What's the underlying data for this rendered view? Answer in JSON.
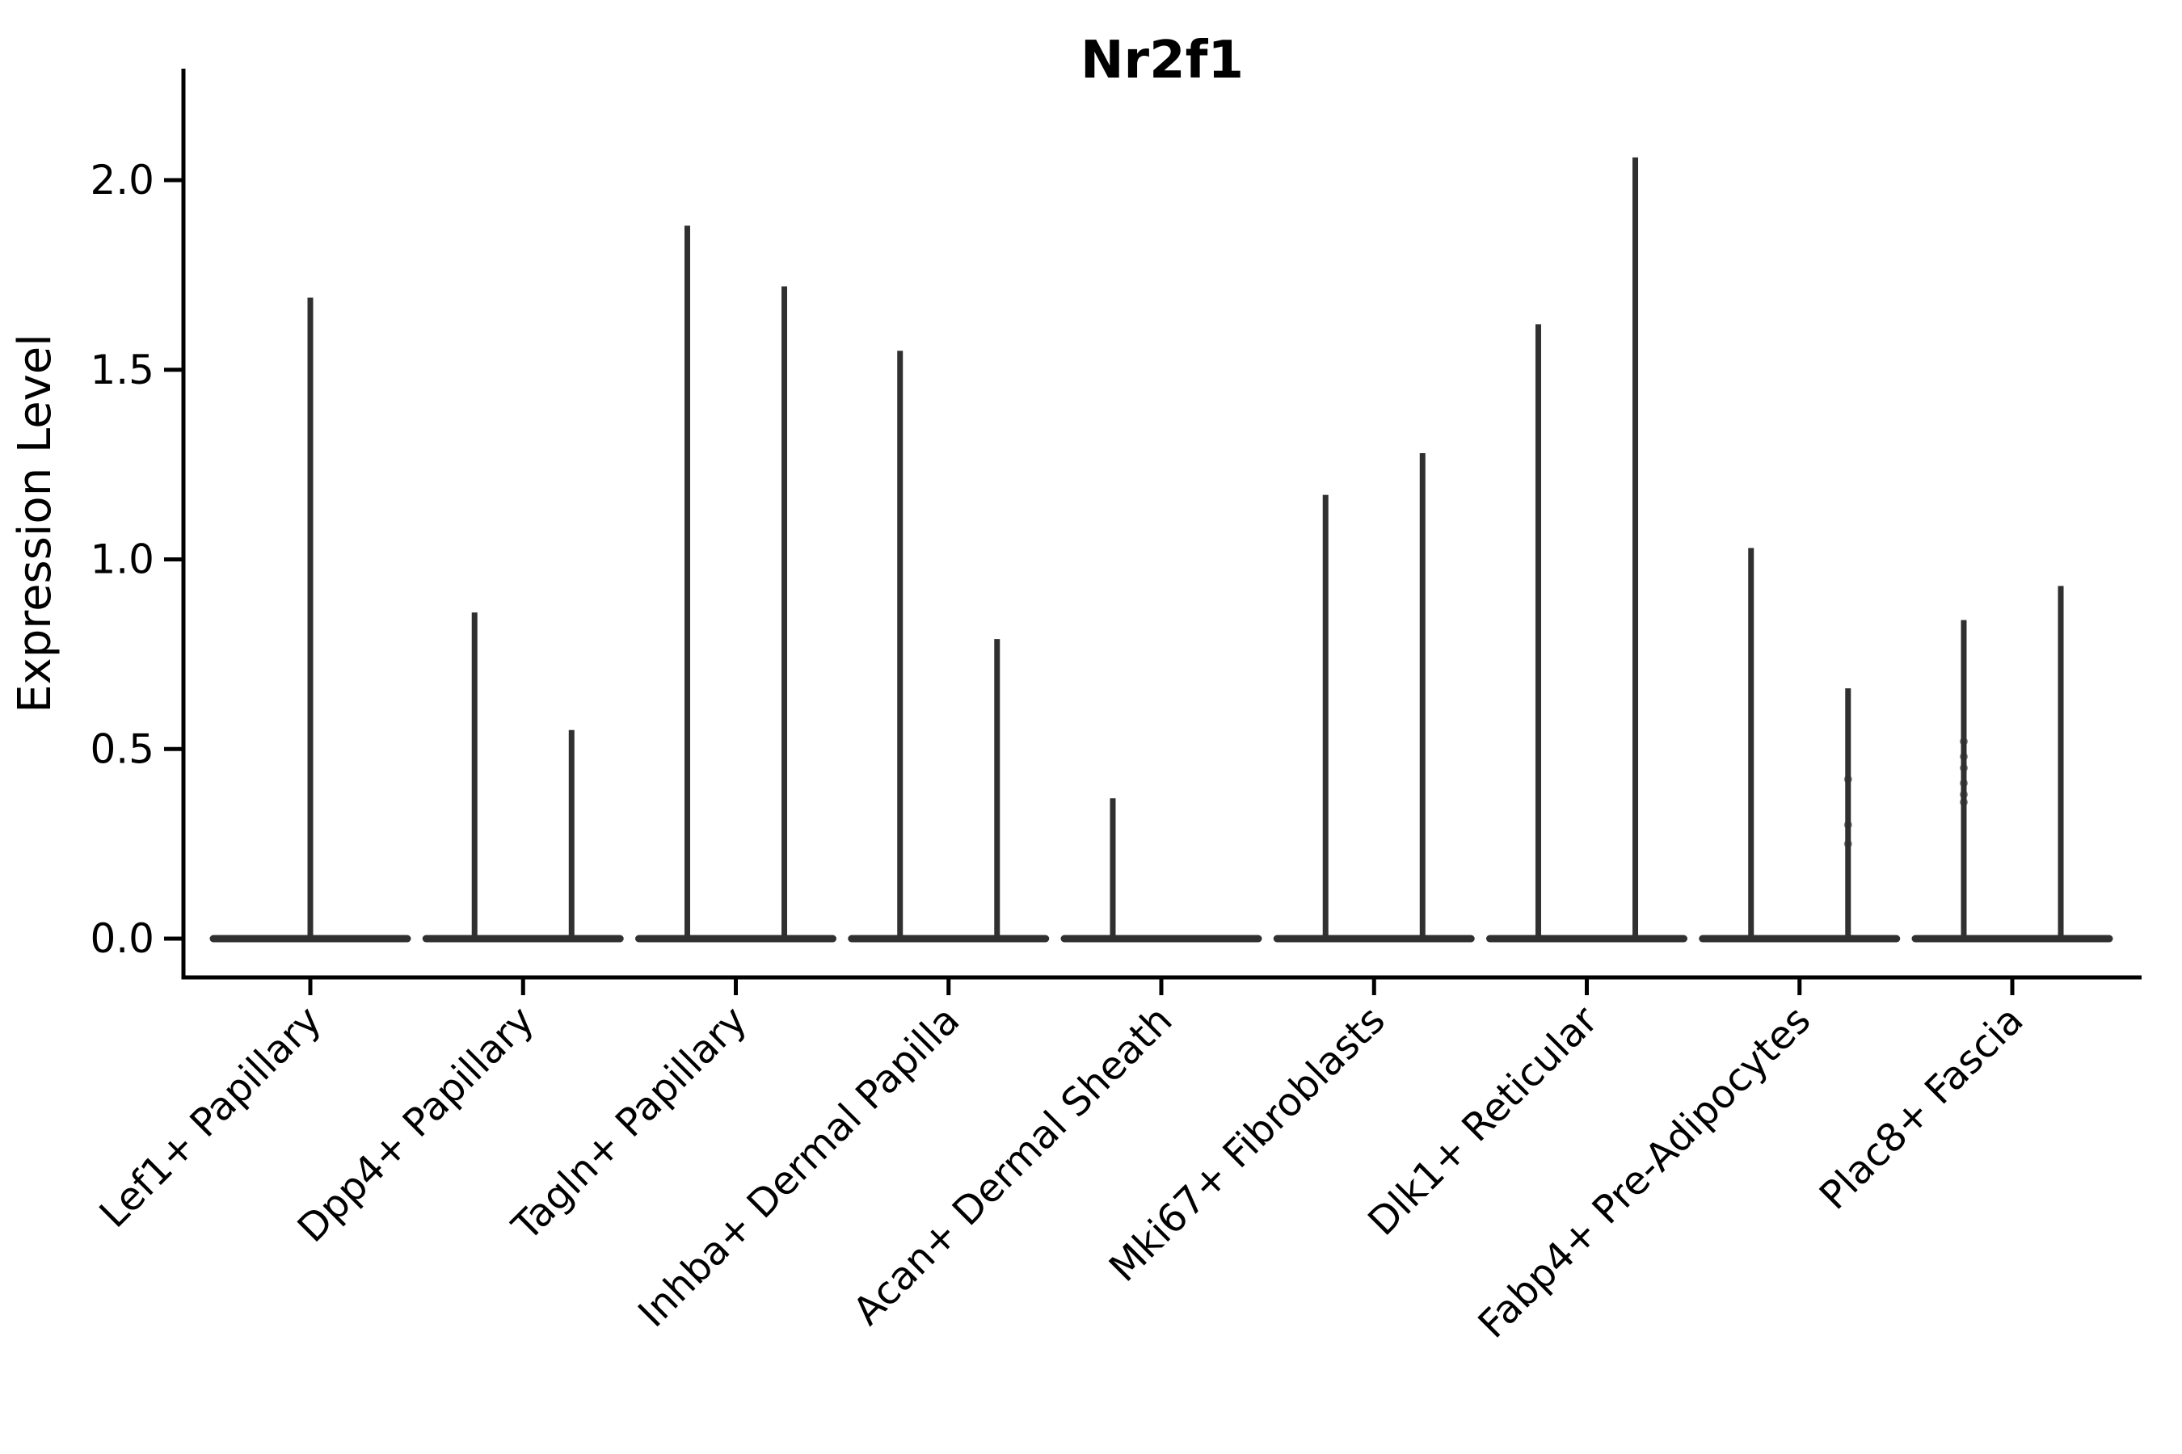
{
  "title": "Nr2f1",
  "y_axis": {
    "label": "Expression Level",
    "tick_labels": [
      "0.0",
      "0.5",
      "1.0",
      "1.5",
      "2.0"
    ]
  },
  "colors": {
    "violin": "#303030",
    "axis": "#000000",
    "background": "#ffffff"
  },
  "chart_data": {
    "type": "violin",
    "title": "Nr2f1",
    "xlabel": "",
    "ylabel": "Expression Level",
    "ylim": [
      -0.1,
      2.29
    ],
    "yticks": [
      0,
      0.5,
      1,
      1.5,
      2
    ],
    "grid": false,
    "legend": "none",
    "categories": [
      "Lef1+ Papillary",
      "Dpp4+ Papillary",
      "Tagln+ Papillary",
      "Inhba+ Dermal Papilla",
      "Acan+ Dermal Sheath",
      "Mki67+ Fibroblasts",
      "Dlk1+ Reticular",
      "Fabp4+ Pre-Adipocytes",
      "Plac8+ Fascia"
    ],
    "violins": [
      {
        "category": "Lef1+ Papillary",
        "spikes": [
          {
            "offset": 0,
            "max": 1.69
          }
        ]
      },
      {
        "category": "Dpp4+ Papillary",
        "spikes": [
          {
            "offset": -0.228,
            "max": 0.86
          },
          {
            "offset": 0.228,
            "max": 0.55
          }
        ]
      },
      {
        "category": "Tagln+ Papillary",
        "spikes": [
          {
            "offset": -0.228,
            "max": 1.88
          },
          {
            "offset": 0.228,
            "max": 1.72
          }
        ]
      },
      {
        "category": "Inhba+ Dermal Papilla",
        "spikes": [
          {
            "offset": -0.228,
            "max": 1.55
          },
          {
            "offset": 0.228,
            "max": 0.79
          }
        ]
      },
      {
        "category": "Acan+ Dermal Sheath",
        "spikes": [
          {
            "offset": -0.228,
            "max": 0.37
          }
        ]
      },
      {
        "category": "Mki67+ Fibroblasts",
        "spikes": [
          {
            "offset": -0.228,
            "max": 1.17
          },
          {
            "offset": 0.228,
            "max": 1.28
          }
        ]
      },
      {
        "category": "Dlk1+ Reticular",
        "spikes": [
          {
            "offset": -0.228,
            "max": 1.62
          },
          {
            "offset": 0.228,
            "max": 2.06
          }
        ]
      },
      {
        "category": "Fabp4+ Pre-Adipocytes",
        "spikes": [
          {
            "offset": -0.228,
            "max": 1.03
          },
          {
            "offset": 0.228,
            "max": 0.66,
            "dots": [
              0.42,
              0.3,
              0.25
            ]
          }
        ]
      },
      {
        "category": "Plac8+ Fascia",
        "spikes": [
          {
            "offset": -0.228,
            "max": 0.84,
            "dots": [
              0.52,
              0.48,
              0.45,
              0.41,
              0.38,
              0.36
            ]
          },
          {
            "offset": 0.228,
            "max": 0.93
          }
        ]
      }
    ]
  }
}
